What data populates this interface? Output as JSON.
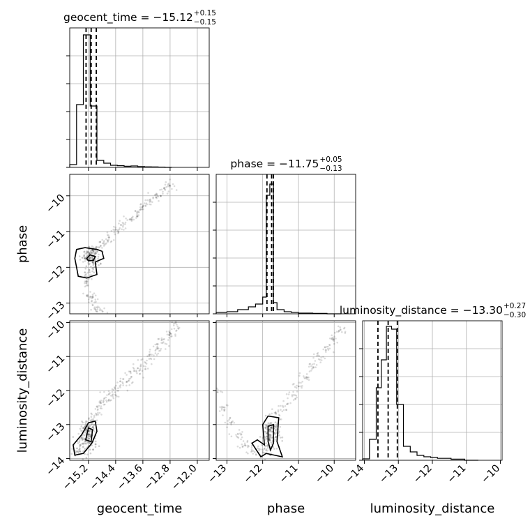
{
  "chart_data": {
    "type": "corner",
    "parameters": [
      "geocent_time",
      "phase",
      "luminosity_distance"
    ],
    "axis_labels": {
      "geocent_time": "geocent_time",
      "phase": "phase",
      "luminosity_distance": "luminosity_distance"
    },
    "ranges": {
      "geocent_time": [
        -15.75,
        -11.65
      ],
      "phase": [
        -13.3,
        -9.4
      ],
      "luminosity_distance": [
        -14.05,
        -9.95
      ]
    },
    "ticks": {
      "geocent_time": [
        -15.2,
        -14.4,
        -13.6,
        -12.8,
        -12.0
      ],
      "phase": [
        -13,
        -12,
        -11,
        -10
      ],
      "luminosity_distance": [
        -14,
        -13,
        -12,
        -11,
        -10
      ]
    },
    "tick_labels": {
      "geocent_time": [
        "−15.2",
        "−14.4",
        "−13.6",
        "−12.8",
        "−12.0"
      ],
      "phase": [
        "−13",
        "−12",
        "−11",
        "−10"
      ],
      "luminosity_distance": [
        "−14",
        "−13",
        "−12",
        "−11",
        "−10"
      ]
    },
    "titles": [
      {
        "param": "geocent_time",
        "text": "geocent_time = −15.12",
        "sup": "+0.15",
        "sub": "−0.15"
      },
      {
        "param": "phase",
        "text": "phase = −11.75",
        "sup": "+0.05",
        "sub": "−0.13"
      },
      {
        "param": "luminosity_distance",
        "text": "luminosity_distance = −13.30",
        "sup": "+0.27",
        "sub": "−0.30"
      }
    ],
    "quantiles": {
      "geocent_time": [
        -15.27,
        -15.12,
        -14.97
      ],
      "phase": [
        -11.88,
        -11.75,
        -11.7
      ],
      "luminosity_distance": [
        -13.6,
        -13.3,
        -13.03
      ]
    },
    "histograms": {
      "geocent_time": {
        "edges": [
          -15.75,
          -15.55,
          -15.35,
          -15.15,
          -14.95,
          -14.75,
          -14.55,
          -14.35,
          -14.15,
          -13.95,
          -13.75,
          -13.55,
          -13.35,
          -13.15,
          -12.95,
          -12.75
        ],
        "counts": [
          0.02,
          0.45,
          0.95,
          0.44,
          0.05,
          0.03,
          0.015,
          0.012,
          0.008,
          0.01,
          0.006,
          0.004,
          0.003,
          0.002,
          0.0
        ]
      },
      "phase": {
        "edges": [
          -13.3,
          -13.0,
          -12.7,
          -12.4,
          -12.2,
          -12.0,
          -11.9,
          -11.8,
          -11.7,
          -11.6,
          -11.4,
          -11.2,
          -11.0,
          -10.6,
          -10.2,
          -9.8
        ],
        "counts": [
          0.01,
          0.015,
          0.03,
          0.05,
          0.07,
          0.12,
          0.85,
          0.93,
          0.08,
          0.03,
          0.015,
          0.01,
          0.005,
          0.003,
          0.0
        ]
      },
      "luminosity_distance": {
        "edges": [
          -14.05,
          -13.85,
          -13.65,
          -13.5,
          -13.35,
          -13.2,
          -13.05,
          -12.85,
          -12.65,
          -12.45,
          -12.25,
          -12.05,
          -11.85,
          -11.45,
          -11.05,
          -10.65
        ],
        "counts": [
          0.01,
          0.15,
          0.52,
          0.72,
          0.96,
          0.94,
          0.4,
          0.1,
          0.06,
          0.035,
          0.025,
          0.02,
          0.014,
          0.008,
          0.0
        ]
      }
    },
    "scatter_samples": {
      "phase_vs_geocent_time": {
        "x": [
          -15.3,
          -15.2,
          -15.1,
          -14.95,
          -14.8,
          -14.6,
          -14.4,
          -14.2,
          -14.0,
          -13.8,
          -13.6,
          -13.4,
          -13.2,
          -13.0,
          -12.8,
          -15.3,
          -15.25,
          -15.15,
          -15.05,
          -14.95,
          -14.8,
          -14.6,
          -14.4,
          -14.2
        ],
        "y": [
          -11.75,
          -11.6,
          -11.55,
          -11.5,
          -11.35,
          -11.2,
          -11.0,
          -10.85,
          -10.65,
          -10.5,
          -10.3,
          -10.15,
          -10.0,
          -9.85,
          -9.7,
          -12.2,
          -12.45,
          -12.75,
          -12.95,
          -13.15,
          -13.3,
          -13.4,
          -13.45,
          -13.48
        ]
      },
      "luminosity_distance_vs_geocent_time": {
        "x": [
          -15.55,
          -15.45,
          -15.35,
          -15.25,
          -15.15,
          -15.05,
          -14.9,
          -14.75,
          -14.6,
          -14.4,
          -14.2,
          -14.0,
          -13.8,
          -13.6,
          -13.4,
          -13.2,
          -13.0,
          -12.8,
          -12.6
        ],
        "y": [
          -13.8,
          -13.6,
          -13.4,
          -13.25,
          -13.05,
          -12.85,
          -12.6,
          -12.35,
          -12.15,
          -12.0,
          -11.8,
          -11.6,
          -11.45,
          -11.25,
          -11.0,
          -10.8,
          -10.6,
          -10.35,
          -10.1
        ]
      },
      "luminosity_distance_vs_phase": {
        "x": [
          -13.3,
          -13.1,
          -12.9,
          -12.7,
          -12.5,
          -12.3,
          -12.1,
          -11.9,
          -11.8,
          -11.7,
          -11.6,
          -11.4,
          -11.2,
          -11.0,
          -10.8,
          -10.6,
          -10.4,
          -10.2,
          -10.0,
          -9.8
        ],
        "y": [
          -12.0,
          -12.5,
          -12.95,
          -13.3,
          -13.55,
          -13.7,
          -13.8,
          -13.7,
          -13.4,
          -13.1,
          -12.7,
          -12.45,
          -12.15,
          -11.85,
          -11.6,
          -11.3,
          -11.05,
          -10.8,
          -10.5,
          -10.2
        ]
      }
    },
    "contour_levels": 2,
    "grid": true
  }
}
